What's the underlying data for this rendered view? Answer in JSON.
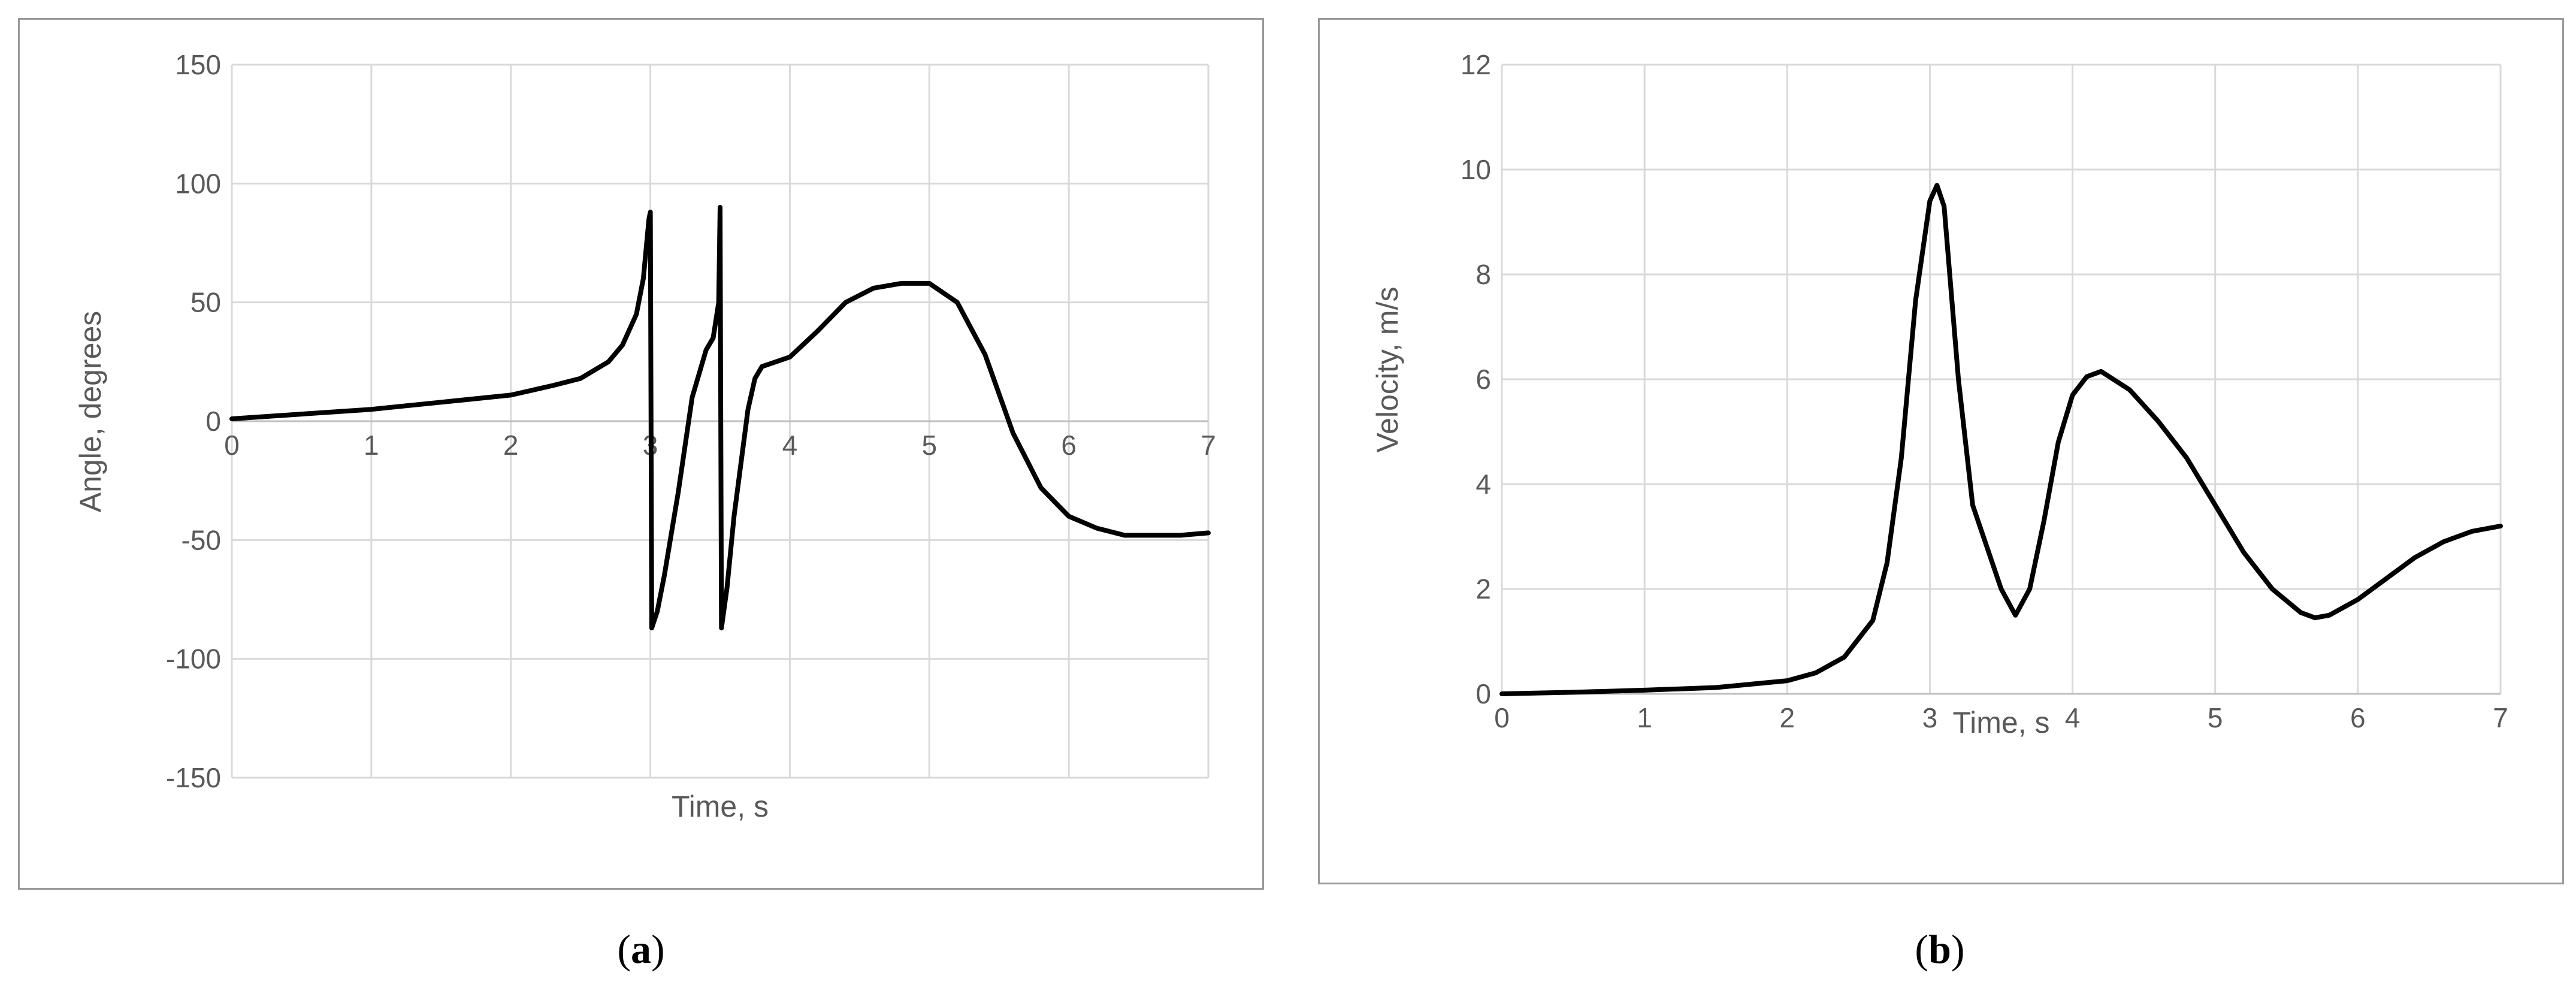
{
  "chart_data": [
    {
      "type": "line",
      "panel_label": "a",
      "title": "",
      "xlabel": "Time, s",
      "ylabel": "Angle, degrees",
      "xlim": [
        0,
        7
      ],
      "ylim": [
        -150,
        150
      ],
      "x_ticks": [
        0,
        1,
        2,
        3,
        4,
        5,
        6,
        7
      ],
      "y_ticks": [
        -150,
        -100,
        -50,
        0,
        50,
        100,
        150
      ],
      "grid": true,
      "legend": "none",
      "line_color": "#000000",
      "series": [
        {
          "x": [
            0,
            0.5,
            1,
            1.5,
            2,
            2.3,
            2.5,
            2.7,
            2.8,
            2.9,
            2.95,
            2.99,
            3.0,
            3.01,
            3.05,
            3.1,
            3.2,
            3.3,
            3.4,
            3.45,
            3.49,
            3.5,
            3.51,
            3.55,
            3.6,
            3.7,
            3.75,
            3.8,
            4.0,
            4.2,
            4.4,
            4.6,
            4.8,
            5.0,
            5.2,
            5.4,
            5.6,
            5.8,
            6.0,
            6.2,
            6.4,
            6.6,
            6.8,
            7.0
          ],
          "y": [
            1,
            3,
            5,
            8,
            11,
            15,
            18,
            25,
            32,
            45,
            60,
            85,
            88,
            -87,
            -80,
            -65,
            -30,
            10,
            30,
            35,
            50,
            90,
            -87,
            -70,
            -40,
            5,
            18,
            23,
            27,
            38,
            50,
            56,
            58,
            58,
            50,
            28,
            -5,
            -28,
            -40,
            -45,
            -48,
            -48,
            -48,
            -47
          ]
        }
      ]
    },
    {
      "type": "line",
      "panel_label": "b",
      "title": "",
      "xlabel": "Time, s",
      "ylabel": "Velocity, m/s",
      "xlim": [
        0,
        7
      ],
      "ylim": [
        0,
        12
      ],
      "x_ticks": [
        0,
        1,
        2,
        3,
        4,
        5,
        6,
        7
      ],
      "y_ticks": [
        0,
        2,
        4,
        6,
        8,
        10,
        12
      ],
      "grid": true,
      "legend": "none",
      "line_color": "#000000",
      "series": [
        {
          "x": [
            0,
            0.5,
            1,
            1.5,
            2,
            2.2,
            2.4,
            2.6,
            2.7,
            2.8,
            2.9,
            3.0,
            3.05,
            3.1,
            3.2,
            3.3,
            3.4,
            3.5,
            3.6,
            3.7,
            3.8,
            3.9,
            4.0,
            4.1,
            4.2,
            4.4,
            4.6,
            4.8,
            5.0,
            5.2,
            5.4,
            5.6,
            5.7,
            5.8,
            6.0,
            6.2,
            6.4,
            6.6,
            6.8,
            7.0
          ],
          "y": [
            0,
            0.03,
            0.07,
            0.12,
            0.25,
            0.4,
            0.7,
            1.4,
            2.5,
            4.5,
            7.5,
            9.4,
            9.7,
            9.3,
            6.0,
            3.6,
            2.8,
            2.0,
            1.5,
            2.0,
            3.3,
            4.8,
            5.7,
            6.05,
            6.15,
            5.8,
            5.2,
            4.5,
            3.6,
            2.7,
            2.0,
            1.55,
            1.45,
            1.5,
            1.8,
            2.2,
            2.6,
            2.9,
            3.1,
            3.2
          ]
        }
      ]
    }
  ],
  "captions": {
    "a": "a",
    "b": "b"
  }
}
